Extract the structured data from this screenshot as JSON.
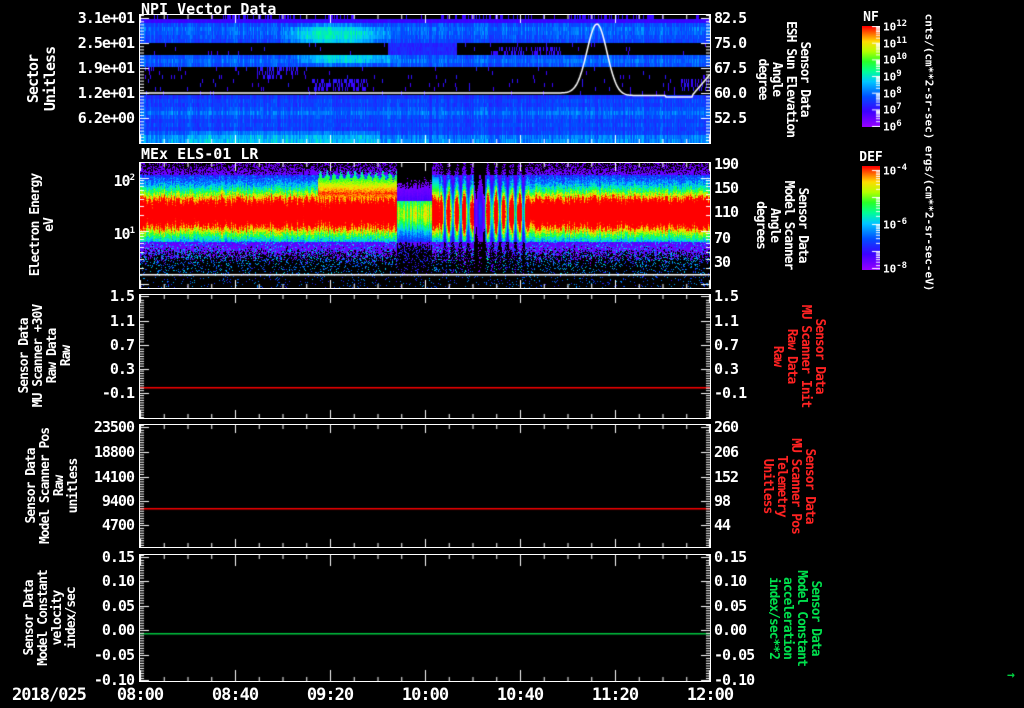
{
  "figure": {
    "background": "#000000",
    "axis_color": "#ffffff"
  },
  "x_axis": {
    "date_label": "2018/025",
    "tick_labels": [
      "08:00",
      "08:40",
      "09:20",
      "10:00",
      "10:40",
      "11:20",
      "12:00"
    ],
    "end_marker_glyph": "→",
    "end_marker_color": "#00d040"
  },
  "panels": [
    {
      "id": "npi",
      "title": "NPI Vector Data",
      "left_label_lines": [
        "Sector",
        "Unitless"
      ],
      "left_ticks": [
        "3.1e+01",
        "2.5e+01",
        "1.9e+01",
        "1.2e+01",
        "6.2e+00"
      ],
      "right_ticks": [
        "82.5",
        "75.0",
        "67.5",
        "60.0",
        "52.5"
      ],
      "right_label_lines": [
        "Sensor Data",
        "ESH Sun Elevation",
        "Angle",
        "degree"
      ],
      "right_label_color": "#ffffff",
      "colorbar": {
        "name": "NF",
        "ticks": [
          "10^12",
          "10^11",
          "10^10",
          "10^9",
          "10^8",
          "10^7",
          "10^6"
        ],
        "units": "cnts/(cm**2-sr-sec)"
      }
    },
    {
      "id": "els",
      "title": "MEx ELS-01 LR",
      "left_label_lines": [
        "Electron Energy",
        "eV"
      ],
      "left_ticks": [
        "10^2",
        "10^1"
      ],
      "right_ticks": [
        "190",
        "150",
        "110",
        "70",
        "30"
      ],
      "right_label_lines": [
        "Sensor Data",
        "Model Scanner",
        "Angle",
        "degrees"
      ],
      "right_label_color": "#ffffff",
      "colorbar": {
        "name": "DEF",
        "ticks": [
          "10^-4",
          "10^-6",
          "10^-8"
        ],
        "units": "ergs/(cm**2-sr-sec-eV)"
      }
    },
    {
      "id": "mu-scanner-30v",
      "title": "",
      "left_label_lines": [
        "Sensor Data",
        "MU Scanner +30V",
        "Raw Data",
        "Raw"
      ],
      "left_ticks": [
        "1.5",
        "1.1",
        "0.7",
        "0.3",
        "-0.1"
      ],
      "right_ticks": [
        "1.5",
        "1.1",
        "0.7",
        "0.3",
        "-0.1"
      ],
      "right_label_lines": [
        "Sensor Data",
        "MU Scanner Init",
        "Raw Data",
        "Raw"
      ],
      "right_label_color": "#ff2222",
      "line_color": "#ff0000",
      "line_value": 0.0
    },
    {
      "id": "model-scanner-pos",
      "title": "",
      "left_label_lines": [
        "Sensor Data",
        "Model Scanner Pos",
        "Raw",
        "unitless"
      ],
      "left_ticks": [
        "23500",
        "18800",
        "14100",
        "9400",
        "4700"
      ],
      "right_ticks": [
        "260",
        "206",
        "152",
        "98",
        "44"
      ],
      "right_label_lines": [
        "Sensor Data",
        "MU Scanner Pos",
        "Telemetry",
        "Unitless"
      ],
      "right_label_color": "#ff2222",
      "line_color": "#ff0000",
      "line_value": 8100
    },
    {
      "id": "model-constant-velocity",
      "title": "",
      "left_label_lines": [
        "Sensor Data",
        "Model Constant",
        "velocity",
        "index/sec"
      ],
      "left_ticks": [
        "0.15",
        "0.10",
        "0.05",
        "0.00",
        "-0.05",
        "-0.10"
      ],
      "right_ticks": [
        "0.15",
        "0.10",
        "0.05",
        "0.00",
        "-0.05",
        "-0.10"
      ],
      "right_label_lines": [
        "Sensor Data",
        "Model Constant",
        "acceleration",
        "index/sec**2"
      ],
      "right_label_color": "#00e04d",
      "line_color": "#00c840",
      "line_value": 0.0
    }
  ],
  "chart_data": [
    {
      "type": "heatmap",
      "title": "NPI Vector Data",
      "xlabel": "Time (2018/025 08:00 - 12:00)",
      "ylabel": "Sector Unitless",
      "yticks": [
        6.2,
        12,
        19,
        25,
        31
      ],
      "right_axis": {
        "label": "Sensor Data ESH Sun Elevation Angle degree",
        "ticks": [
          52.5,
          60.0,
          67.5,
          75.0,
          82.5
        ]
      },
      "colorbar": {
        "name": "NF",
        "scale": "log",
        "range_low": "1e6",
        "range_high": "1e12",
        "units": "cnts/(cm**2-sr-sec)"
      },
      "description": "32 azimuthal sectors; alternating empty (black) and active blue/purple sector bands; bright cyan enhancement ~08:55-10:00 in upper sector bands; bottom sector bands continuously blue, brightest 08:45-10:30",
      "overlay_line": {
        "name": "ESH Sun Elevation Angle",
        "color": "#ffffff",
        "x": [
          "08:00",
          "10:55",
          "11:03",
          "11:10",
          "11:18",
          "11:25",
          "11:52",
          "11:57",
          "12:00"
        ],
        "y": [
          60.0,
          60.0,
          66.0,
          81.5,
          63.0,
          58.8,
          58.8,
          61.0,
          65.0
        ]
      }
    },
    {
      "type": "heatmap",
      "title": "MEx ELS-01 LR",
      "ylabel": "Electron Energy eV",
      "yscale": "log",
      "yticks": [
        "1e1",
        "1e2"
      ],
      "right_axis": {
        "label": "Sensor Data Model Scanner Angle degrees",
        "ticks": [
          30,
          70,
          110,
          150,
          190
        ]
      },
      "colorbar": {
        "name": "DEF",
        "scale": "log",
        "range_low": "1e-8",
        "range_high": "1e-4",
        "units": "ergs/(cm**2-sr-sec-eV)"
      },
      "description": "Continuous green/yellow flux band ~8-40 eV; intense red enhancement 30-120 eV from ~09:15 to ~09:50; data dropout ~09:50-10:05; narrow intense burst at ~10:05; striped/attenuated fluxes 10:05-10:40; steady yellow-green band 10:40-12:00; noisy blue background above and below"
    },
    {
      "type": "line",
      "name": "MU Scanner +30V Raw Data",
      "color": "#ff0000",
      "ylim": [
        -0.5,
        1.5
      ],
      "yticks": [
        -0.1,
        0.3,
        0.7,
        1.1,
        1.5
      ],
      "right_yticks": [
        -0.1,
        0.3,
        0.7,
        1.1,
        1.5
      ],
      "x_range": [
        "08:00",
        "12:00"
      ],
      "constant_value": 0.0
    },
    {
      "type": "line",
      "name": "Model Scanner Pos Raw",
      "color": "#ff0000",
      "yticks": [
        4700,
        9400,
        14100,
        18800,
        23500
      ],
      "right_yticks": [
        44,
        98,
        152,
        206,
        260
      ],
      "x_range": [
        "08:00",
        "12:00"
      ],
      "constant_value": 8100
    },
    {
      "type": "line",
      "name": "Model Constant velocity",
      "color": "#00c840",
      "ylim": [
        -0.1,
        0.15
      ],
      "yticks": [
        -0.1,
        -0.05,
        0.0,
        0.05,
        0.1,
        0.15
      ],
      "right_yticks": [
        -0.1,
        -0.05,
        0.0,
        0.05,
        0.1,
        0.15
      ],
      "x_range": [
        "08:00",
        "12:00"
      ],
      "constant_value": 0.0
    }
  ]
}
